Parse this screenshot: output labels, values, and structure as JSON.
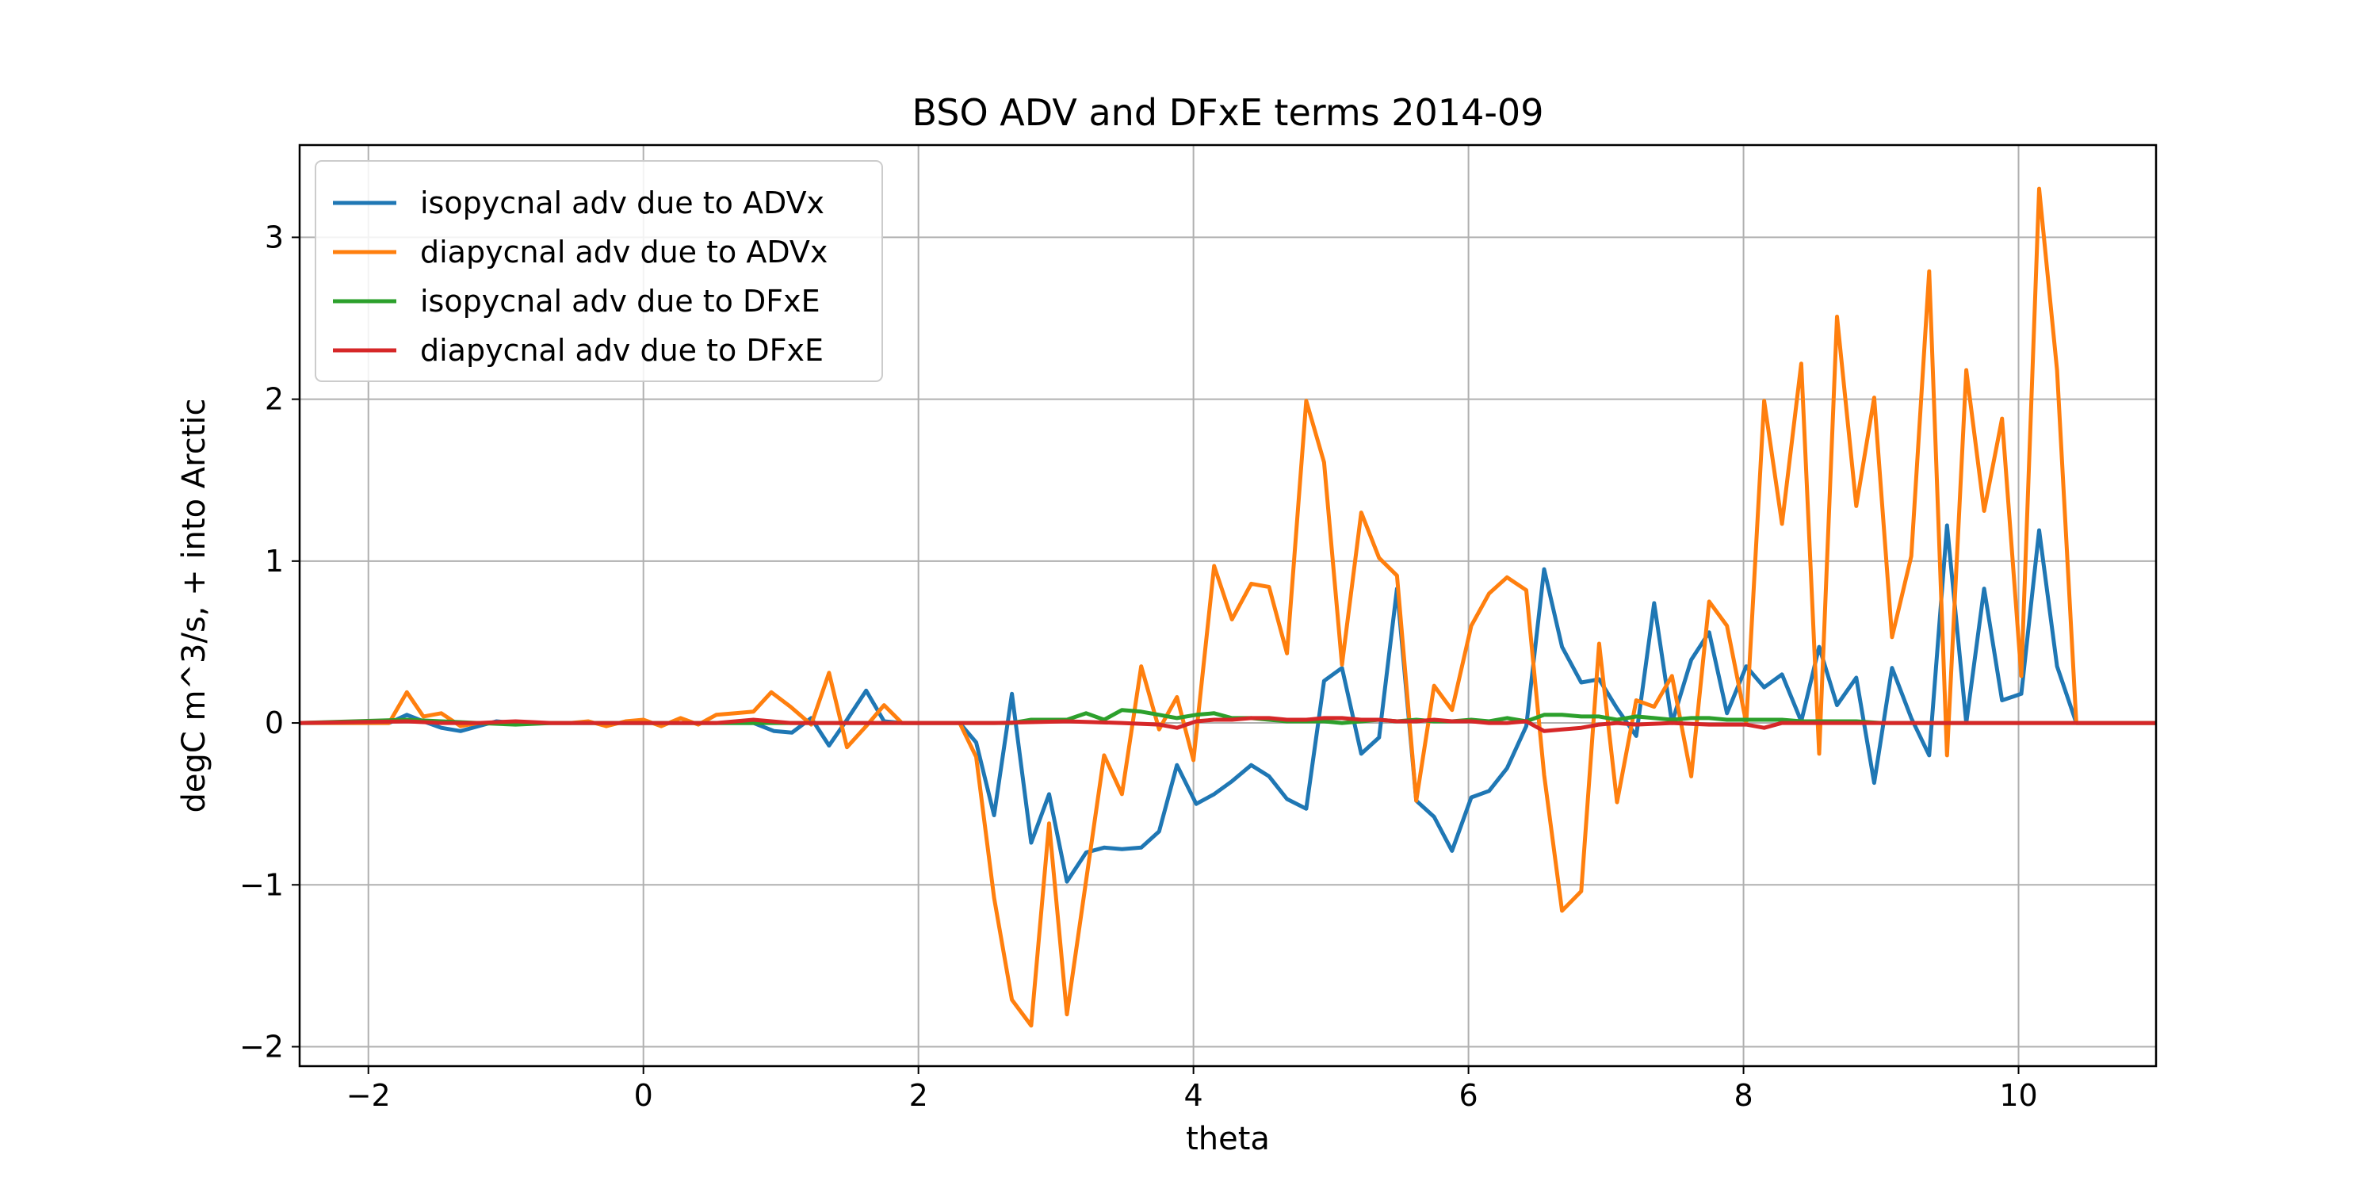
{
  "chart_data": {
    "type": "line",
    "title": "BSO ADV and DFxE terms 2014-09",
    "xlabel": "theta",
    "ylabel": "degC m^3/s, + into Arctic",
    "xlim": [
      -2.5,
      11.0
    ],
    "ylim": [
      -2.12,
      3.57
    ],
    "xticks": [
      -2,
      0,
      2,
      4,
      6,
      8,
      10
    ],
    "xtick_labels": [
      "−2",
      "0",
      "2",
      "4",
      "6",
      "8",
      "10"
    ],
    "yticks": [
      -2,
      -1,
      0,
      1,
      2,
      3
    ],
    "ytick_labels": [
      "−2",
      "−1",
      "0",
      "1",
      "2",
      "3"
    ],
    "grid": true,
    "legend_position": "upper-left",
    "series": [
      {
        "name": "isopycnal adv due to ADVx",
        "color": "#1f77b4",
        "x": [
          -2.5,
          -1.85,
          -1.72,
          -1.6,
          -1.47,
          -1.33,
          -1.2,
          -1.07,
          -0.93,
          -0.8,
          -0.4,
          0.0,
          0.5,
          0.8,
          0.95,
          1.08,
          1.22,
          1.35,
          1.48,
          1.62,
          1.75,
          1.88,
          2.0,
          2.3,
          2.42,
          2.55,
          2.68,
          2.82,
          2.95,
          3.08,
          3.22,
          3.35,
          3.48,
          3.62,
          3.75,
          3.88,
          4.02,
          4.15,
          4.28,
          4.42,
          4.55,
          4.68,
          4.82,
          4.95,
          5.08,
          5.22,
          5.35,
          5.48,
          5.62,
          5.75,
          5.88,
          6.02,
          6.15,
          6.28,
          6.42,
          6.55,
          6.68,
          6.82,
          6.95,
          7.08,
          7.22,
          7.35,
          7.48,
          7.62,
          7.75,
          7.88,
          8.02,
          8.15,
          8.28,
          8.42,
          8.55,
          8.68,
          8.82,
          8.95,
          9.08,
          9.22,
          9.35,
          9.48,
          9.62,
          9.75,
          9.88,
          10.02,
          10.15,
          10.28,
          10.42,
          10.55,
          11.0
        ],
        "y": [
          0.0,
          0.0,
          0.05,
          0.01,
          -0.03,
          -0.05,
          -0.02,
          0.01,
          0.0,
          0.0,
          0.0,
          0.0,
          0.0,
          0.0,
          -0.05,
          -0.06,
          0.03,
          -0.14,
          0.02,
          0.2,
          0.01,
          0.0,
          0.0,
          0.0,
          -0.12,
          -0.57,
          0.18,
          -0.74,
          -0.44,
          -0.98,
          -0.8,
          -0.77,
          -0.78,
          -0.77,
          -0.67,
          -0.26,
          -0.5,
          -0.44,
          -0.36,
          -0.26,
          -0.33,
          -0.47,
          -0.53,
          0.26,
          0.34,
          -0.19,
          -0.09,
          0.83,
          -0.48,
          -0.58,
          -0.79,
          -0.46,
          -0.42,
          -0.28,
          -0.02,
          0.95,
          0.47,
          0.25,
          0.27,
          0.09,
          -0.08,
          0.74,
          0.0,
          0.39,
          0.56,
          0.06,
          0.35,
          0.22,
          0.3,
          0.01,
          0.47,
          0.11,
          0.28,
          -0.37,
          0.34,
          0.03,
          -0.2,
          1.22,
          0.0,
          0.83,
          0.14,
          0.18,
          1.19,
          0.35,
          0.0,
          0.0,
          0.0
        ]
      },
      {
        "name": "diapycnal adv due to ADVx",
        "color": "#ff7f0e",
        "x": [
          -2.5,
          -1.85,
          -1.72,
          -1.6,
          -1.47,
          -1.33,
          -1.2,
          -1.07,
          -0.93,
          -0.8,
          -0.67,
          -0.53,
          -0.4,
          -0.27,
          -0.13,
          0.0,
          0.13,
          0.27,
          0.4,
          0.53,
          0.67,
          0.8,
          0.93,
          1.07,
          1.22,
          1.35,
          1.48,
          1.62,
          1.75,
          1.88,
          2.0,
          2.3,
          2.42,
          2.55,
          2.68,
          2.82,
          2.95,
          3.08,
          3.22,
          3.35,
          3.48,
          3.62,
          3.75,
          3.88,
          4.0,
          4.15,
          4.28,
          4.42,
          4.55,
          4.68,
          4.82,
          4.95,
          5.08,
          5.22,
          5.35,
          5.48,
          5.62,
          5.75,
          5.88,
          6.02,
          6.15,
          6.28,
          6.42,
          6.55,
          6.68,
          6.82,
          6.95,
          7.08,
          7.22,
          7.35,
          7.48,
          7.62,
          7.75,
          7.88,
          8.02,
          8.15,
          8.28,
          8.42,
          8.55,
          8.68,
          8.82,
          8.95,
          9.08,
          9.22,
          9.35,
          9.48,
          9.62,
          9.75,
          9.88,
          10.02,
          10.15,
          10.28,
          10.42,
          10.55,
          11.0
        ],
        "y": [
          0.0,
          0.0,
          0.19,
          0.04,
          0.06,
          -0.02,
          0.0,
          0.0,
          0.0,
          0.0,
          0.0,
          0.0,
          0.01,
          -0.02,
          0.01,
          0.02,
          -0.02,
          0.03,
          -0.01,
          0.05,
          0.06,
          0.07,
          0.19,
          0.1,
          -0.01,
          0.31,
          -0.15,
          -0.02,
          0.11,
          0.0,
          0.0,
          0.0,
          -0.21,
          -1.08,
          -1.71,
          -1.87,
          -0.62,
          -1.8,
          -0.97,
          -0.2,
          -0.44,
          0.35,
          -0.04,
          0.16,
          -0.23,
          0.97,
          0.64,
          0.86,
          0.84,
          0.43,
          1.99,
          1.61,
          0.36,
          1.3,
          1.02,
          0.91,
          -0.48,
          0.23,
          0.08,
          0.6,
          0.8,
          0.9,
          0.82,
          -0.32,
          -1.16,
          -1.04,
          0.49,
          -0.49,
          0.14,
          0.1,
          0.29,
          -0.33,
          0.75,
          0.6,
          0.0,
          1.99,
          1.23,
          2.22,
          -0.19,
          2.51,
          1.34,
          2.01,
          0.53,
          1.03,
          2.79,
          -0.2,
          2.18,
          1.31,
          1.88,
          0.29,
          3.3,
          2.18,
          0.0,
          0.0,
          0.0
        ]
      },
      {
        "name": "isopycnal adv due to DFxE",
        "color": "#2ca02c",
        "x": [
          -2.5,
          -1.72,
          -1.47,
          -1.2,
          -0.93,
          -0.67,
          -0.4,
          0.0,
          0.53,
          1.07,
          2.0,
          2.42,
          2.55,
          2.68,
          2.82,
          2.95,
          3.08,
          3.22,
          3.35,
          3.48,
          3.62,
          3.75,
          3.88,
          4.02,
          4.15,
          4.28,
          4.42,
          4.55,
          4.68,
          4.82,
          4.95,
          5.08,
          5.22,
          5.35,
          5.48,
          5.62,
          5.75,
          5.88,
          6.02,
          6.15,
          6.28,
          6.42,
          6.55,
          6.68,
          6.82,
          6.95,
          7.08,
          7.22,
          7.35,
          7.48,
          7.62,
          7.75,
          7.88,
          8.02,
          8.15,
          8.28,
          8.42,
          8.55,
          8.68,
          8.82,
          9.0,
          11.0
        ],
        "y": [
          0.0,
          0.02,
          0.01,
          0.0,
          -0.01,
          0.0,
          0.0,
          0.0,
          0.0,
          0.0,
          0.0,
          0.0,
          0.0,
          0.0,
          0.02,
          0.02,
          0.02,
          0.06,
          0.02,
          0.08,
          0.07,
          0.05,
          0.03,
          0.05,
          0.06,
          0.03,
          0.03,
          0.02,
          0.01,
          0.01,
          0.01,
          0.0,
          0.01,
          0.02,
          0.01,
          0.02,
          0.01,
          0.01,
          0.02,
          0.01,
          0.03,
          0.01,
          0.05,
          0.05,
          0.04,
          0.04,
          0.02,
          0.04,
          0.03,
          0.02,
          0.03,
          0.03,
          0.02,
          0.02,
          0.02,
          0.02,
          0.01,
          0.01,
          0.01,
          0.01,
          0.0,
          0.0
        ]
      },
      {
        "name": "diapycnal adv due to DFxE",
        "color": "#d62728",
        "x": [
          -2.5,
          -1.72,
          -1.47,
          -1.2,
          -0.93,
          -0.67,
          -0.4,
          0.0,
          0.53,
          0.8,
          1.07,
          2.0,
          2.55,
          3.08,
          3.48,
          3.75,
          3.88,
          4.02,
          4.15,
          4.28,
          4.42,
          4.55,
          4.68,
          4.82,
          4.95,
          5.08,
          5.22,
          5.35,
          5.48,
          5.62,
          5.75,
          5.88,
          6.02,
          6.15,
          6.28,
          6.42,
          6.55,
          6.68,
          6.82,
          6.95,
          7.08,
          7.22,
          7.48,
          7.75,
          8.02,
          8.15,
          8.28,
          8.42,
          8.68,
          9.0,
          11.0
        ],
        "y": [
          0.0,
          0.01,
          0.0,
          0.0,
          0.01,
          0.0,
          0.0,
          0.0,
          0.0,
          0.02,
          0.0,
          0.0,
          0.0,
          0.01,
          0.0,
          -0.01,
          -0.03,
          0.01,
          0.02,
          0.02,
          0.03,
          0.03,
          0.02,
          0.02,
          0.03,
          0.03,
          0.02,
          0.02,
          0.01,
          0.01,
          0.02,
          0.01,
          0.01,
          0.0,
          0.0,
          0.01,
          -0.05,
          -0.04,
          -0.03,
          -0.01,
          0.0,
          -0.01,
          0.0,
          -0.01,
          -0.01,
          -0.03,
          0.0,
          0.0,
          0.0,
          0.0,
          0.0
        ]
      }
    ]
  }
}
